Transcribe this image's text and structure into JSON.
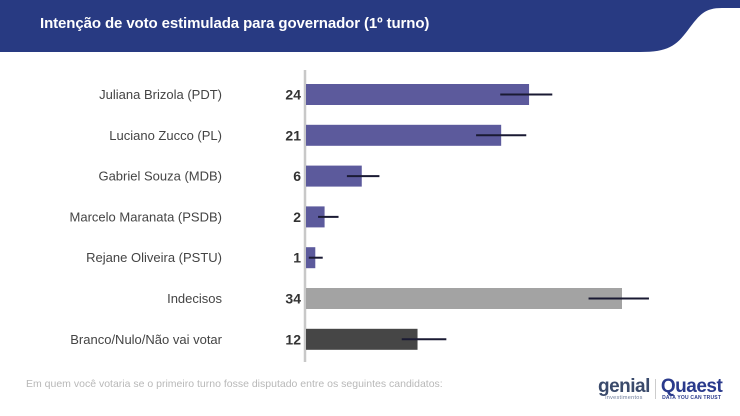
{
  "header": {
    "title": "Intenção de voto estimulada para governador (1º turno)",
    "background_color": "#283a82"
  },
  "chart_data": {
    "type": "bar",
    "orientation": "horizontal",
    "title": "Intenção de voto estimulada para governador (1º turno)",
    "xlabel": "",
    "ylabel": "",
    "xlim": [
      0,
      34
    ],
    "grid": false,
    "legend": "none",
    "categories": [
      "Juliana Brizola (PDT)",
      "Luciano Zucco (PL)",
      "Gabriel Souza (MDB)",
      "Marcelo Maranata (PSDB)",
      "Rejane Oliveira (PSTU)",
      "Indecisos",
      "Branco/Nulo/Não vai votar"
    ],
    "values": [
      24,
      21,
      6,
      2,
      1,
      34,
      12
    ],
    "error_bars": [
      [
        20.9,
        26.5
      ],
      [
        18.3,
        23.7
      ],
      [
        4.4,
        7.9
      ],
      [
        1.3,
        3.5
      ],
      [
        0.3,
        1.8
      ],
      [
        30.4,
        36.9
      ],
      [
        10.3,
        15.1
      ]
    ],
    "bar_colors": [
      "#5c5a9c",
      "#5c5a9c",
      "#5c5a9c",
      "#5c5a9c",
      "#5c5a9c",
      "#a3a3a3",
      "#464646"
    ],
    "error_bar_color": "#1a1a33",
    "axis_color": "#c8c8c8"
  },
  "footer": {
    "note": "Em quem você votaria se o primeiro turno fosse disputado entre os seguintes candidatos:",
    "logo_genial": "genial",
    "logo_genial_sub": "investimentos",
    "logo_quaest": "Quaest",
    "logo_quaest_sub": "DATA YOU CAN TRUST"
  }
}
